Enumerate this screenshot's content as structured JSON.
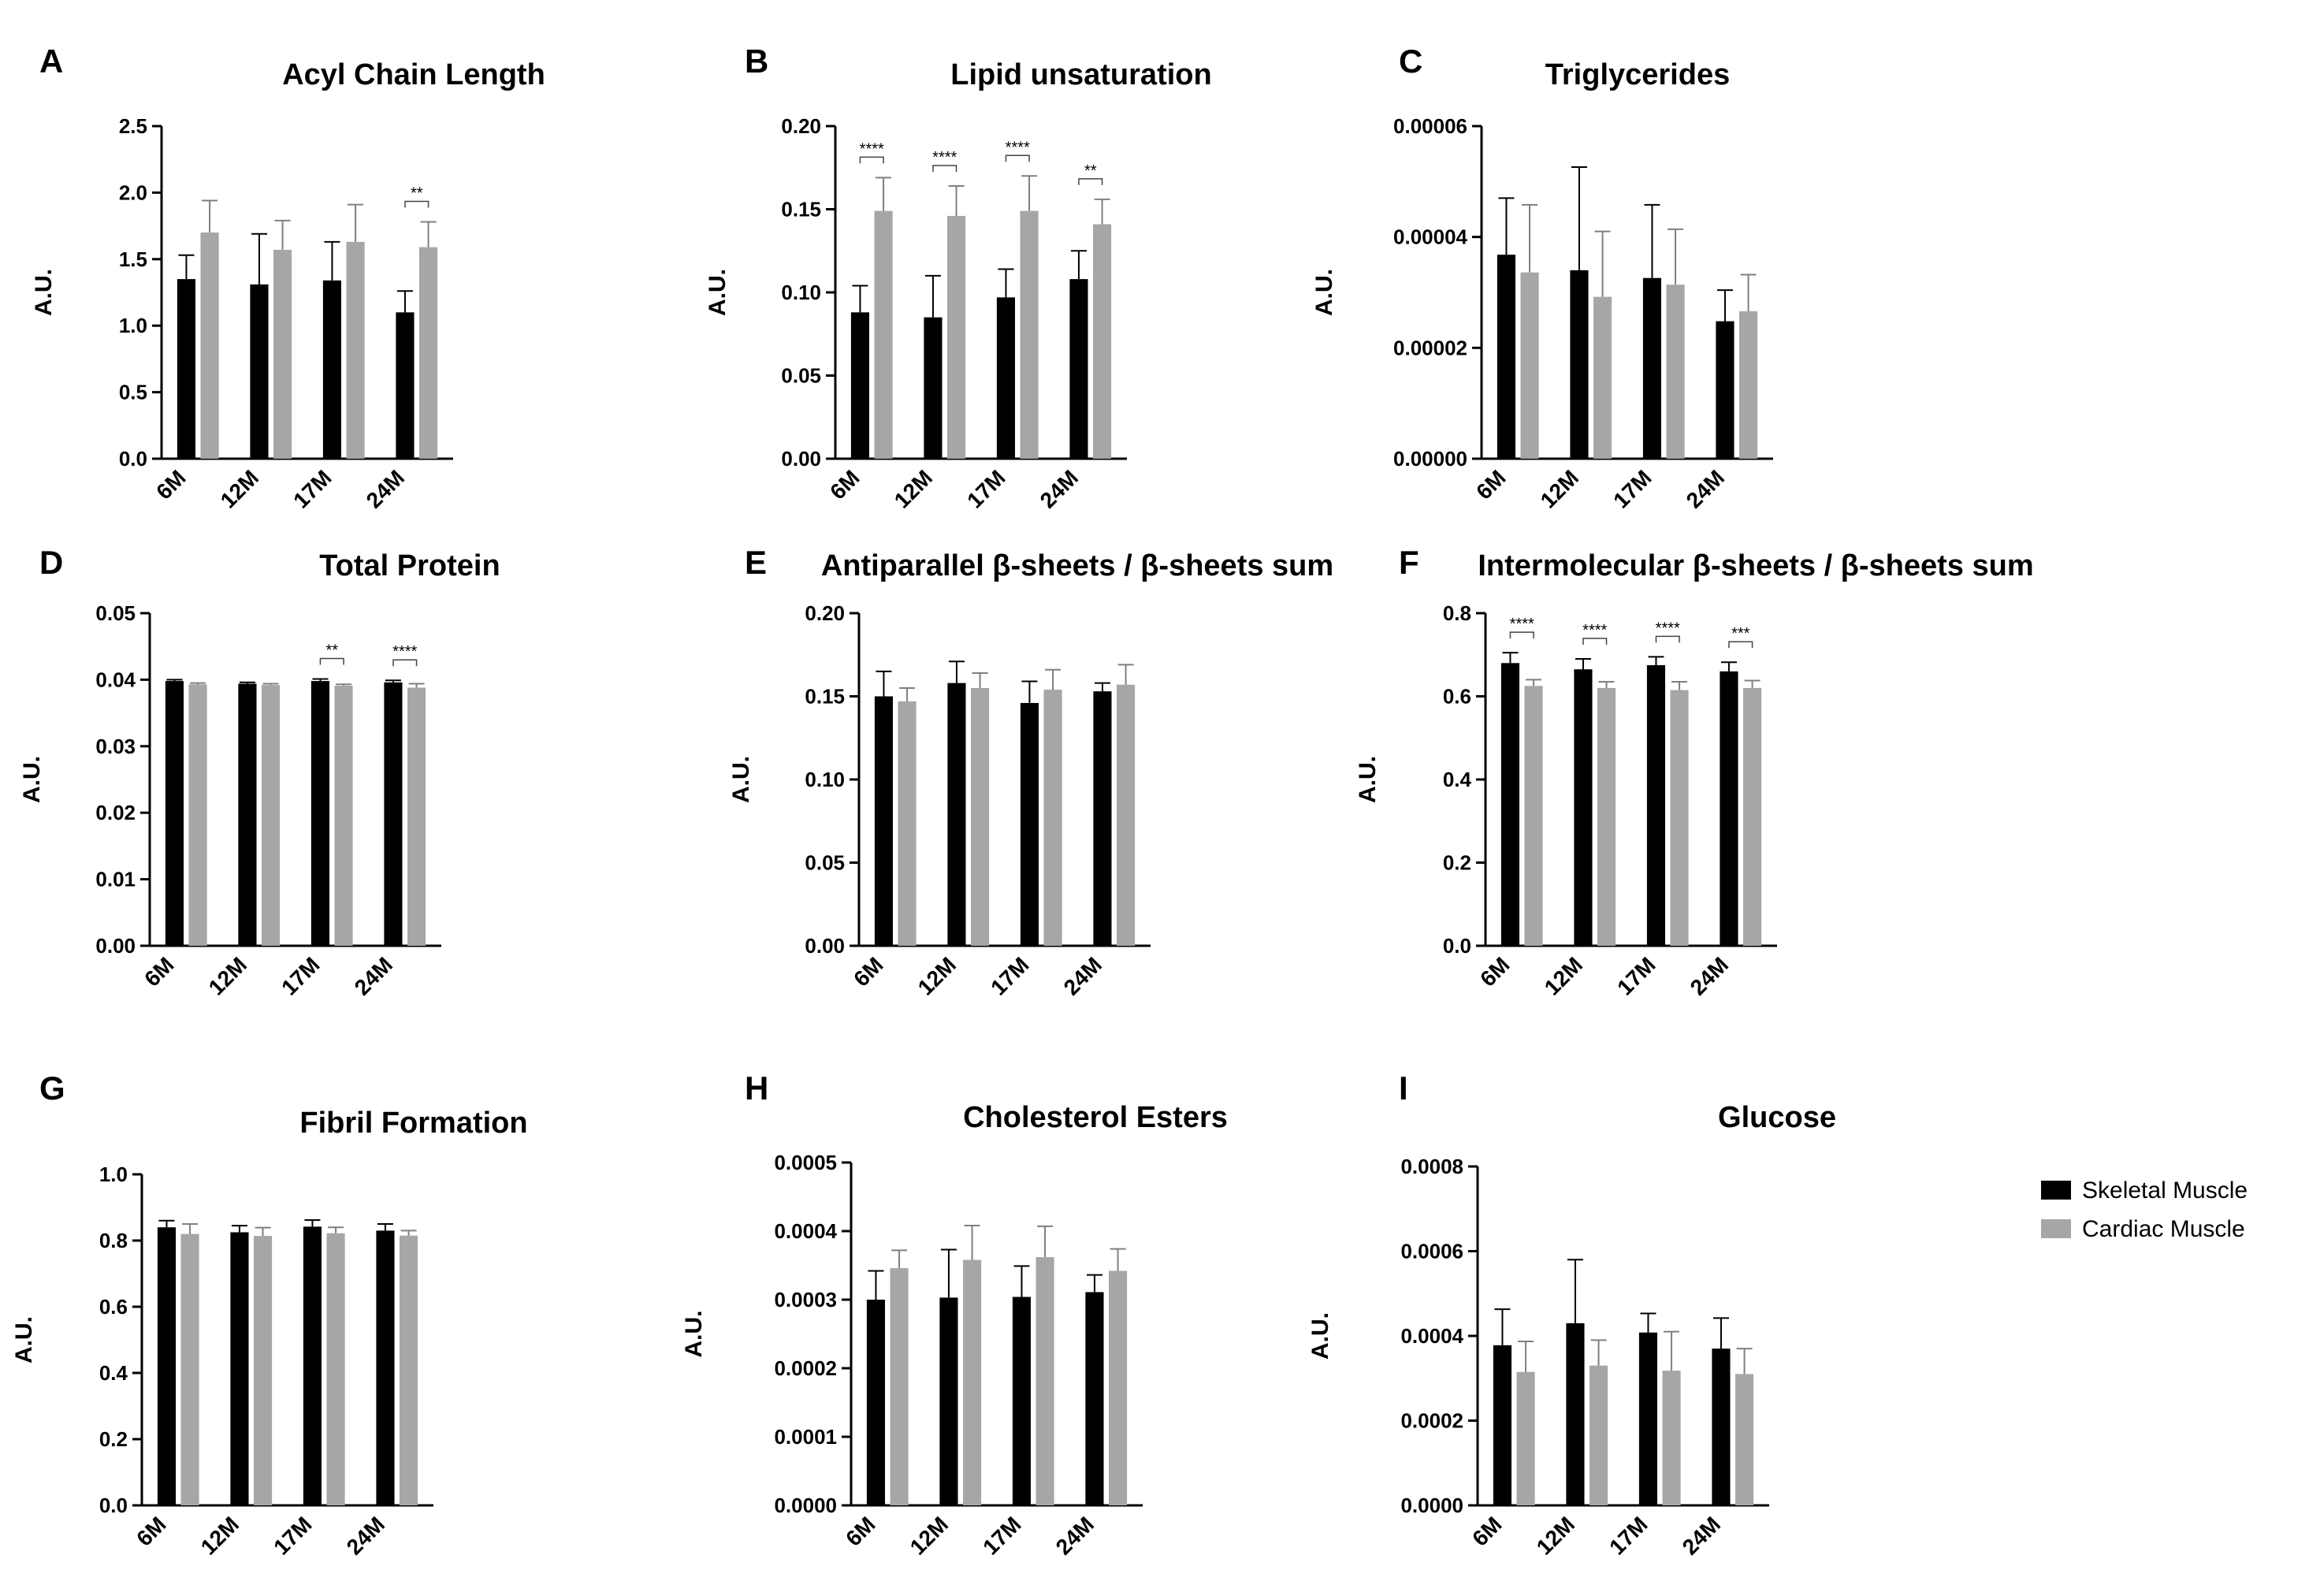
{
  "legend": {
    "series": [
      {
        "name": "Skeletal Muscle",
        "color": "#000000"
      },
      {
        "name": "Cardiac Muscle",
        "color": "#a6a6a6"
      }
    ]
  },
  "chart_data": [
    {
      "letter": "A",
      "type": "bar",
      "title": "Acyl Chain Length",
      "ylabel": "A.U.",
      "categories": [
        "6M",
        "12M",
        "17M",
        "24M"
      ],
      "ylim": [
        0,
        2.5
      ],
      "yticks": [
        "0.0",
        "0.5",
        "1.0",
        "1.5",
        "2.0",
        "2.5"
      ],
      "series": [
        {
          "name": "Skeletal Muscle",
          "values": [
            1.35,
            1.31,
            1.34,
            1.1
          ],
          "errors": [
            0.18,
            0.38,
            0.29,
            0.16
          ]
        },
        {
          "name": "Cardiac Muscle",
          "values": [
            1.7,
            1.57,
            1.63,
            1.59
          ],
          "errors": [
            0.24,
            0.22,
            0.28,
            0.19
          ]
        }
      ],
      "significance": [
        {
          "index": 3,
          "label": "**"
        }
      ]
    },
    {
      "letter": "B",
      "type": "bar",
      "title": "Lipid unsaturation",
      "ylabel": "A.U.",
      "categories": [
        "6M",
        "12M",
        "17M",
        "24M"
      ],
      "ylim": [
        0,
        0.2
      ],
      "yticks": [
        "0.00",
        "0.05",
        "0.10",
        "0.15",
        "0.20"
      ],
      "series": [
        {
          "name": "Skeletal Muscle",
          "values": [
            0.088,
            0.085,
            0.097,
            0.108
          ],
          "errors": [
            0.016,
            0.025,
            0.017,
            0.017
          ]
        },
        {
          "name": "Cardiac Muscle",
          "values": [
            0.149,
            0.146,
            0.149,
            0.141
          ],
          "errors": [
            0.02,
            0.018,
            0.021,
            0.015
          ]
        }
      ],
      "significance": [
        {
          "index": 0,
          "label": "****"
        },
        {
          "index": 1,
          "label": "****"
        },
        {
          "index": 2,
          "label": "****"
        },
        {
          "index": 3,
          "label": "**"
        }
      ]
    },
    {
      "letter": "C",
      "type": "bar",
      "title": "Triglycerides",
      "ylabel": "A.U.",
      "categories": [
        "6M",
        "12M",
        "17M",
        "24M"
      ],
      "ylim": [
        0,
        6e-05
      ],
      "yticks": [
        "0.00000",
        "0.00002",
        "0.00004",
        "0.00006"
      ],
      "series": [
        {
          "name": "Skeletal Muscle",
          "values": [
            3.68e-05,
            3.4e-05,
            3.26e-05,
            2.48e-05
          ],
          "errors": [
            1.02e-05,
            1.86e-05,
            1.32e-05,
            5.6e-06
          ]
        },
        {
          "name": "Cardiac Muscle",
          "values": [
            3.36e-05,
            2.92e-05,
            3.14e-05,
            2.66e-05
          ],
          "errors": [
            1.22e-05,
            1.18e-05,
            1e-05,
            6.6e-06
          ]
        }
      ],
      "significance": []
    },
    {
      "letter": "D",
      "type": "bar",
      "title": "Total Protein",
      "ylabel": "A.U.",
      "categories": [
        "6M",
        "12M",
        "17M",
        "24M"
      ],
      "ylim": [
        0,
        0.05
      ],
      "yticks": [
        "0.00",
        "0.01",
        "0.02",
        "0.03",
        "0.04",
        "0.05"
      ],
      "series": [
        {
          "name": "Skeletal Muscle",
          "values": [
            0.0398,
            0.0394,
            0.0398,
            0.0396
          ],
          "errors": [
            0.0002,
            0.0002,
            0.0003,
            0.0003
          ]
        },
        {
          "name": "Cardiac Muscle",
          "values": [
            0.0393,
            0.0392,
            0.0391,
            0.0388
          ],
          "errors": [
            0.0002,
            0.0002,
            0.0002,
            0.0006
          ]
        }
      ],
      "significance": [
        {
          "index": 2,
          "label": "**"
        },
        {
          "index": 3,
          "label": "****"
        }
      ]
    },
    {
      "letter": "E",
      "type": "bar",
      "title": "Antiparallel β-sheets / β-sheets sum",
      "ylabel": "A.U.",
      "categories": [
        "6M",
        "12M",
        "17M",
        "24M"
      ],
      "ylim": [
        0,
        0.2
      ],
      "yticks": [
        "0.00",
        "0.05",
        "0.10",
        "0.15",
        "0.20"
      ],
      "series": [
        {
          "name": "Skeletal Muscle",
          "values": [
            0.15,
            0.158,
            0.146,
            0.153
          ],
          "errors": [
            0.015,
            0.013,
            0.013,
            0.005
          ]
        },
        {
          "name": "Cardiac Muscle",
          "values": [
            0.147,
            0.155,
            0.154,
            0.157
          ],
          "errors": [
            0.008,
            0.009,
            0.012,
            0.012
          ]
        }
      ],
      "significance": []
    },
    {
      "letter": "F",
      "type": "bar",
      "title": "Intermolecular β-sheets / β-sheets sum",
      "ylabel": "A.U.",
      "categories": [
        "6M",
        "12M",
        "17M",
        "24M"
      ],
      "ylim": [
        0,
        0.8
      ],
      "yticks": [
        "0.0",
        "0.2",
        "0.4",
        "0.6",
        "0.8"
      ],
      "series": [
        {
          "name": "Skeletal Muscle",
          "values": [
            0.68,
            0.665,
            0.675,
            0.66
          ],
          "errors": [
            0.025,
            0.025,
            0.02,
            0.022
          ]
        },
        {
          "name": "Cardiac Muscle",
          "values": [
            0.625,
            0.62,
            0.615,
            0.62
          ],
          "errors": [
            0.015,
            0.015,
            0.02,
            0.018
          ]
        }
      ],
      "significance": [
        {
          "index": 0,
          "label": "****"
        },
        {
          "index": 1,
          "label": "****"
        },
        {
          "index": 2,
          "label": "****"
        },
        {
          "index": 3,
          "label": "***"
        }
      ]
    },
    {
      "letter": "G",
      "type": "bar",
      "title": "Fibril Formation",
      "ylabel": "A.U.",
      "categories": [
        "6M",
        "12M",
        "17M",
        "24M"
      ],
      "ylim": [
        0,
        1.0
      ],
      "yticks": [
        "0.0",
        "0.2",
        "0.4",
        "0.6",
        "0.8",
        "1.0"
      ],
      "series": [
        {
          "name": "Skeletal Muscle",
          "values": [
            0.84,
            0.825,
            0.842,
            0.83
          ],
          "errors": [
            0.02,
            0.02,
            0.02,
            0.02
          ]
        },
        {
          "name": "Cardiac Muscle",
          "values": [
            0.82,
            0.814,
            0.822,
            0.815
          ],
          "errors": [
            0.03,
            0.025,
            0.018,
            0.015
          ]
        }
      ],
      "significance": []
    },
    {
      "letter": "H",
      "type": "bar",
      "title": "Cholesterol Esters",
      "ylabel": "A.U.",
      "categories": [
        "6M",
        "12M",
        "17M",
        "24M"
      ],
      "ylim": [
        0,
        0.0005
      ],
      "yticks": [
        "0.0000",
        "0.0001",
        "0.0002",
        "0.0003",
        "0.0004",
        "0.0005"
      ],
      "series": [
        {
          "name": "Skeletal Muscle",
          "values": [
            0.0003,
            0.000303,
            0.000304,
            0.000311
          ],
          "errors": [
            4.2e-05,
            7e-05,
            4.5e-05,
            2.5e-05
          ]
        },
        {
          "name": "Cardiac Muscle",
          "values": [
            0.000346,
            0.000358,
            0.000362,
            0.000342
          ],
          "errors": [
            2.6e-05,
            5e-05,
            4.5e-05,
            3.2e-05
          ]
        }
      ],
      "significance": []
    },
    {
      "letter": "I",
      "type": "bar",
      "title": "Glucose",
      "ylabel": "A.U.",
      "categories": [
        "6M",
        "12M",
        "17M",
        "24M"
      ],
      "ylim": [
        0,
        0.0008
      ],
      "yticks": [
        "0.0000",
        "0.0002",
        "0.0004",
        "0.0006",
        "0.0008"
      ],
      "series": [
        {
          "name": "Skeletal Muscle",
          "values": [
            0.000378,
            0.00043,
            0.000408,
            0.00037
          ],
          "errors": [
            8.5e-05,
            0.00015,
            4.5e-05,
            7.2e-05
          ]
        },
        {
          "name": "Cardiac Muscle",
          "values": [
            0.000315,
            0.00033,
            0.000318,
            0.00031
          ],
          "errors": [
            7.2e-05,
            6e-05,
            9.2e-05,
            6e-05
          ]
        }
      ],
      "significance": []
    }
  ]
}
